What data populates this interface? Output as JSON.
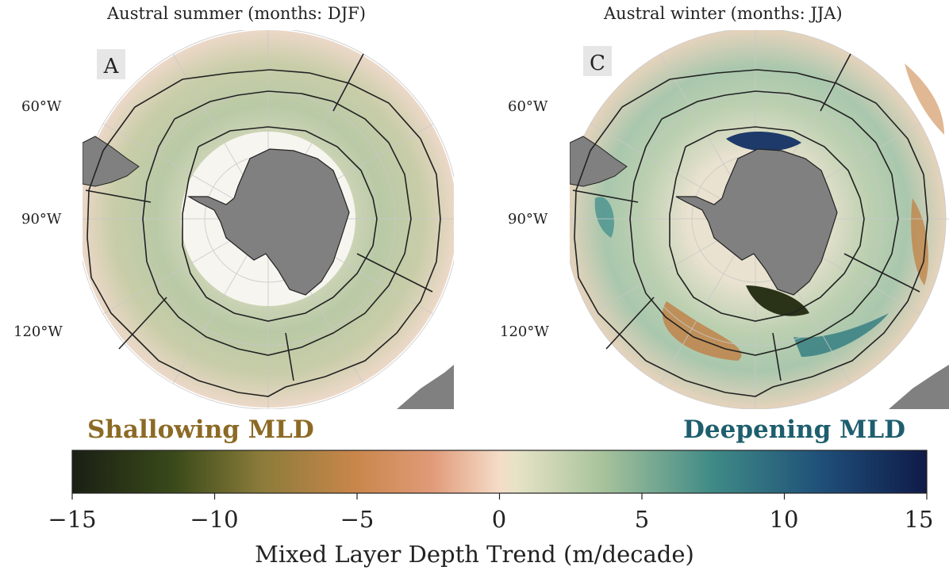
{
  "panels": [
    {
      "title": "Austral summer (months: DJF)",
      "letter": "A",
      "lon_labels": [
        "60°W",
        "90°W",
        "120°W"
      ]
    },
    {
      "title": "Austral winter (months: JJA)",
      "letter": "C",
      "lon_labels": [
        "60°W",
        "90°W",
        "120°W"
      ]
    }
  ],
  "legend": {
    "shallowing": "Shallowing MLD",
    "deepening": "Deepening MLD"
  },
  "colorbar": {
    "title": "Mixed Layer Depth Trend (m/decade)",
    "range": [
      -15,
      15
    ],
    "ticks": [
      "−15",
      "−10",
      "−5",
      "0",
      "5",
      "10",
      "15"
    ]
  },
  "colors": {
    "shallowing": "#8c6a25",
    "deepening": "#1e5e6e",
    "land": "#808080",
    "frame": "#222222"
  }
}
